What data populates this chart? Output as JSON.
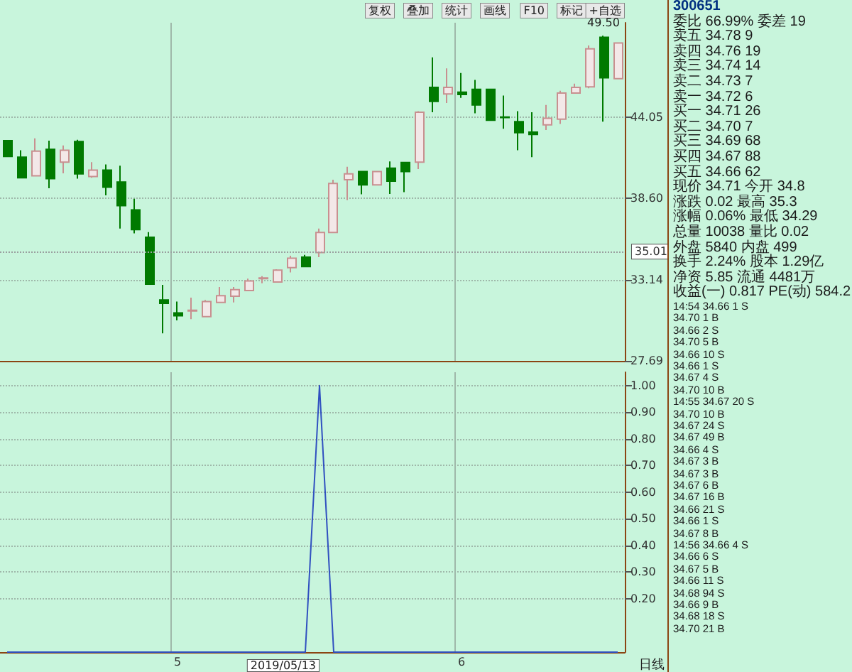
{
  "chart_data": [
    {
      "type": "candlestick",
      "categories": [
        null,
        null,
        null,
        null,
        null,
        null,
        null,
        null,
        null,
        null,
        null,
        null,
        "5",
        null,
        null,
        null,
        null,
        null,
        null,
        null,
        null,
        null,
        null,
        null,
        null,
        null,
        null,
        null,
        null,
        null,
        null,
        null,
        "6",
        null,
        null,
        null,
        null,
        null,
        null,
        null,
        null,
        null,
        null,
        null
      ],
      "ohlc": [
        [
          42.46,
          42.46,
          41.4,
          41.4
        ],
        [
          41.35,
          41.82,
          39.97,
          39.97
        ],
        [
          40.1,
          42.62,
          40.1,
          41.76
        ],
        [
          41.88,
          42.46,
          39.27,
          39.91
        ],
        [
          41.02,
          42.14,
          40.27,
          41.82
        ],
        [
          42.4,
          42.52,
          39.91,
          40.23
        ],
        [
          40.06,
          41.02,
          39.97,
          40.48
        ],
        [
          40.48,
          40.87,
          38.79,
          39.34
        ],
        [
          39.69,
          40.78,
          36.56,
          38.1
        ],
        [
          37.81,
          38.57,
          36.24,
          36.49
        ],
        [
          35.98,
          36.33,
          32.83,
          32.83
        ],
        [
          31.77,
          32.79,
          29.54,
          31.55
        ],
        [
          30.91,
          31.67,
          30.4,
          30.72
        ],
        [
          31.04,
          31.93,
          30.49,
          31.08
        ],
        [
          30.66,
          31.77,
          30.66,
          31.67
        ],
        [
          31.61,
          32.64,
          31.61,
          32.06
        ],
        [
          32.03,
          32.64,
          31.61,
          32.47
        ],
        [
          32.41,
          33.21,
          32.41,
          33.05
        ],
        [
          33.21,
          33.37,
          32.89,
          33.25
        ],
        [
          32.98,
          33.84,
          32.98,
          33.78
        ],
        [
          33.94,
          34.74,
          33.62,
          34.58
        ],
        [
          34.65,
          34.8,
          34.01,
          34.01
        ],
        [
          34.96,
          36.56,
          34.65,
          36.3
        ],
        [
          36.3,
          39.84,
          36.3,
          39.59
        ],
        [
          39.84,
          40.71,
          38.47,
          40.23
        ],
        [
          40.39,
          40.39,
          38.86,
          39.5
        ],
        [
          39.5,
          40.39,
          39.5,
          40.39
        ],
        [
          40.61,
          41.07,
          38.89,
          39.75
        ],
        [
          40.99,
          40.99,
          39.01,
          40.39
        ],
        [
          41.02,
          44.44,
          40.55,
          44.37
        ],
        [
          46.04,
          48.05,
          44.37,
          45.09
        ],
        [
          45.59,
          47.31,
          44.98,
          46.04
        ],
        [
          45.71,
          47.0,
          45.33,
          45.56
        ],
        [
          45.9,
          46.54,
          44.3,
          44.85
        ],
        [
          45.9,
          45.9,
          43.83,
          43.83
        ],
        [
          44.05,
          45.49,
          43.26,
          44.01
        ],
        [
          43.74,
          44.44,
          41.82,
          43.0
        ],
        [
          43.03,
          44.37,
          41.35,
          42.88
        ],
        [
          43.52,
          44.85,
          43.17,
          43.96
        ],
        [
          43.9,
          45.81,
          43.58,
          45.65
        ],
        [
          45.65,
          46.29,
          45.65,
          46.04
        ],
        [
          46.07,
          48.84,
          45.97,
          48.62
        ],
        [
          49.39,
          49.5,
          43.74,
          46.68
        ],
        [
          46.62,
          49.01,
          46.62,
          49.01
        ]
      ],
      "colors": [
        "#007a00",
        "#007a00",
        "#f3e8e8",
        "#007a00",
        "#f3e8e8",
        "#007a00",
        "#f3e8e8",
        "#007a00",
        "#007a00",
        "#007a00",
        "#007a00",
        "#007a00",
        "#007a00",
        "#f3e8e8",
        "#f3e8e8",
        "#f3e8e8",
        "#f3e8e8",
        "#f3e8e8",
        "#f3e8e8",
        "#f3e8e8",
        "#f3e8e8",
        "#007a00",
        "#f3e8e8",
        "#f3e8e8",
        "#f3e8e8",
        "#007a00",
        "#f3e8e8",
        "#007a00",
        "#007a00",
        "#f3e8e8",
        "#007a00",
        "#f3e8e8",
        "#007a00",
        "#007a00",
        "#007a00",
        "#007a00",
        "#007a00",
        "#007a00",
        "#f3e8e8",
        "#f3e8e8",
        "#f3e8e8",
        "#f3e8e8",
        "#007a00",
        "#f3e8e8"
      ],
      "ylim": [
        27.69,
        50.37
      ],
      "yticks": [
        27.69,
        33.14,
        {
          "value": 38.6,
          "label": "38.60"
        },
        44.05
      ],
      "grid": true,
      "tick_labels": "y",
      "ref_lines": [
        {
          "axis": "y",
          "value": 35.01,
          "label": "35.01",
          "color": "#9aa0a0",
          "line_style": "dotted"
        }
      ],
      "annotations": [
        {
          "text": "49.50",
          "y": 49.5
        },
        "复权",
        "叠加",
        "统计",
        "画线",
        "F10",
        "标记",
        "+自选"
      ]
    },
    {
      "type": "line",
      "categories": [
        null,
        null,
        null,
        null,
        null,
        null,
        null,
        null,
        null,
        null,
        null,
        null,
        "5",
        null,
        null,
        null,
        null,
        null,
        null,
        null,
        null,
        null,
        null,
        null,
        null,
        null,
        null,
        null,
        null,
        null,
        null,
        null,
        "6",
        null,
        null,
        null,
        null,
        null,
        null,
        null,
        null,
        null,
        null,
        null
      ],
      "series": [
        {
          "color": "#3050c0",
          "values": [
            0,
            0,
            0,
            0,
            0,
            0,
            0,
            0,
            0,
            0,
            0,
            0,
            0,
            0,
            0,
            0,
            0,
            0,
            0,
            0,
            0,
            0,
            1,
            0,
            0,
            0,
            0,
            0,
            0,
            0,
            0,
            0,
            0,
            0,
            0,
            0,
            0,
            0,
            0,
            0,
            0,
            0,
            0,
            0
          ]
        }
      ],
      "ylim": [
        0,
        1.05
      ],
      "yticks": [
        {
          "value": 0.2,
          "label": "0.20"
        },
        {
          "value": 0.3,
          "label": "0.30"
        },
        {
          "value": 0.4,
          "label": "0.40"
        },
        {
          "value": 0.5,
          "label": "0.50"
        },
        {
          "value": 0.6,
          "label": "0.60"
        },
        {
          "value": 0.7,
          "label": "0.70"
        },
        {
          "value": 0.8,
          "label": "0.80"
        },
        {
          "value": 0.9,
          "label": "0.90"
        },
        {
          "value": 1.0,
          "label": "1.00"
        }
      ],
      "grid": true,
      "marker": "none",
      "line_style": "solid",
      "annotations": [
        "2019/05/13",
        "日线"
      ]
    },
    {
      "type": "other",
      "annotations": [
        "300651",
        "委比 66.99% 委差 19",
        "卖五 34.78 9",
        "卖四 34.76 19",
        "卖三 34.74 14",
        "卖二 34.73 7",
        "卖一 34.72 6",
        "买一 34.71 26",
        "买二 34.70 7",
        "买三 34.69 68",
        "买四 34.67 88",
        "买五 34.66 62",
        "现价 34.71 今开 34.8",
        "涨跌 0.02 最高 35.3",
        "涨幅 0.06% 最低 34.29",
        "总量 10038 量比 0.02",
        "外盘 5840 内盘 499",
        "换手 2.24% 股本 1.29亿",
        "净资 5.85 流通 4481万",
        "收益(一) 0.817 PE(动) 584.2",
        "14:54 34.66 1 S",
        "34.70 1 B",
        "34.66 2 S",
        "34.70 5 B",
        "34.66 10 S",
        "34.66 1 S",
        "34.67 4 S",
        "34.70 10 B",
        "14:55 34.67 20 S",
        "34.70 10 B",
        "34.67 24 S",
        "34.67 49 B",
        "34.66 4 S",
        "34.67 3 B",
        "34.67 3 B",
        "34.67 6 B",
        "34.67 16 B",
        "34.66 21 S",
        "34.66 1 S",
        "34.67 8 B",
        "14:56 34.66 4 S",
        "34.66 6 S",
        "34.67 5 B",
        "34.66 11 S",
        "34.68 94 S",
        "34.66 9 B",
        "34.68 18 S",
        "34.70 21 B"
      ]
    }
  ]
}
